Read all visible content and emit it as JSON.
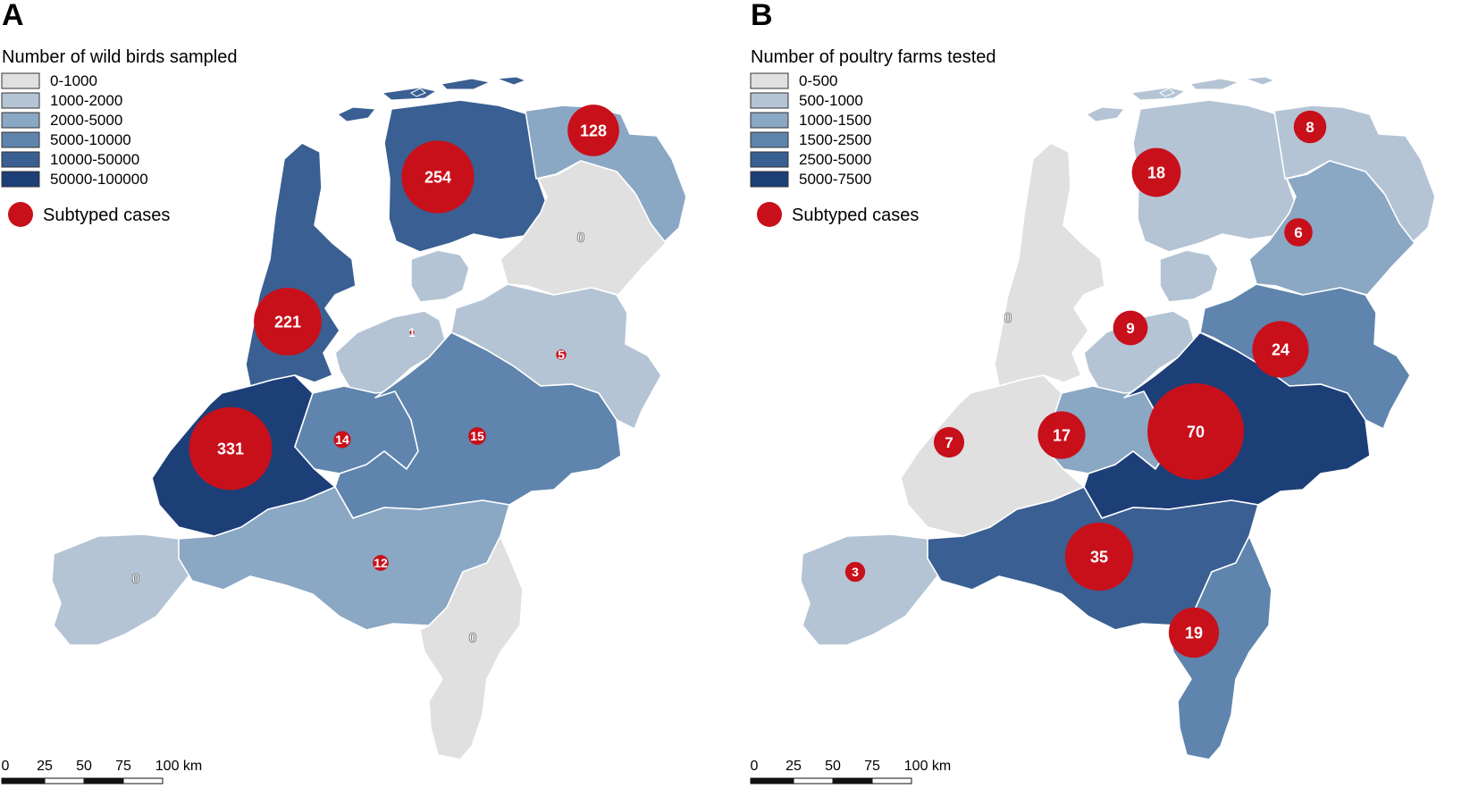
{
  "colors": {
    "class_fill": [
      "#e0e0e0",
      "#b4c4d4",
      "#8aa7c4",
      "#5f84ad",
      "#3a5f92",
      "#1d3f78"
    ],
    "circle": "#c8101b",
    "water": "#ffffff",
    "border": "#ffffff",
    "legend_border": "#333333"
  },
  "panels": [
    {
      "label": "A",
      "legend_title": "Number of wild birds sampled",
      "legend_items": [
        "0-1000",
        "1000-2000",
        "2000-5000",
        "5000-10000",
        "10000-50000",
        "50000-100000"
      ],
      "circle_legend": "Subtyped cases",
      "scale": {
        "ticks": [
          "0",
          "25",
          "50",
          "75",
          "100 km"
        ]
      },
      "provinces": [
        {
          "id": "friesland",
          "cls": 4,
          "cases": "254",
          "value": 254
        },
        {
          "id": "groningen",
          "cls": 2,
          "cases": "128",
          "value": 128
        },
        {
          "id": "drenthe",
          "cls": 0,
          "cases": "0",
          "value": 0
        },
        {
          "id": "noord-holland",
          "cls": 4,
          "cases": "221",
          "value": 221
        },
        {
          "id": "flevoland",
          "cls": 1,
          "cases": "1",
          "value": 1
        },
        {
          "id": "overijssel",
          "cls": 1,
          "cases": "5",
          "value": 5
        },
        {
          "id": "zuid-holland",
          "cls": 5,
          "cases": "331",
          "value": 331
        },
        {
          "id": "utrecht",
          "cls": 3,
          "cases": "14",
          "value": 14
        },
        {
          "id": "gelderland",
          "cls": 3,
          "cases": "15",
          "value": 15
        },
        {
          "id": "zeeland",
          "cls": 1,
          "cases": "0",
          "value": 0
        },
        {
          "id": "noord-brabant",
          "cls": 2,
          "cases": "12",
          "value": 12
        },
        {
          "id": "limburg",
          "cls": 0,
          "cases": "0",
          "value": 0
        }
      ]
    },
    {
      "label": "B",
      "legend_title": "Number of poultry farms tested",
      "legend_items": [
        "0-500",
        "500-1000",
        "1000-1500",
        "1500-2500",
        "2500-5000",
        "5000-7500"
      ],
      "circle_legend": "Subtyped cases",
      "scale": {
        "ticks": [
          "0",
          "25",
          "50",
          "75",
          "100 km"
        ]
      },
      "provinces": [
        {
          "id": "friesland",
          "cls": 1,
          "cases": "18",
          "value": 18
        },
        {
          "id": "groningen",
          "cls": 1,
          "cases": "8",
          "value": 8
        },
        {
          "id": "drenthe",
          "cls": 2,
          "cases": "6",
          "value": 6
        },
        {
          "id": "noord-holland",
          "cls": 0,
          "cases": "0",
          "value": 0
        },
        {
          "id": "flevoland",
          "cls": 1,
          "cases": "9",
          "value": 9
        },
        {
          "id": "overijssel",
          "cls": 3,
          "cases": "24",
          "value": 24
        },
        {
          "id": "zuid-holland",
          "cls": 0,
          "cases": "7",
          "value": 7
        },
        {
          "id": "utrecht",
          "cls": 2,
          "cases": "17",
          "value": 17
        },
        {
          "id": "gelderland",
          "cls": 5,
          "cases": "70",
          "value": 70
        },
        {
          "id": "zeeland",
          "cls": 1,
          "cases": "3",
          "value": 3
        },
        {
          "id": "noord-brabant",
          "cls": 4,
          "cases": "35",
          "value": 35
        },
        {
          "id": "limburg",
          "cls": 3,
          "cases": "19",
          "value": 19
        }
      ]
    }
  ]
}
